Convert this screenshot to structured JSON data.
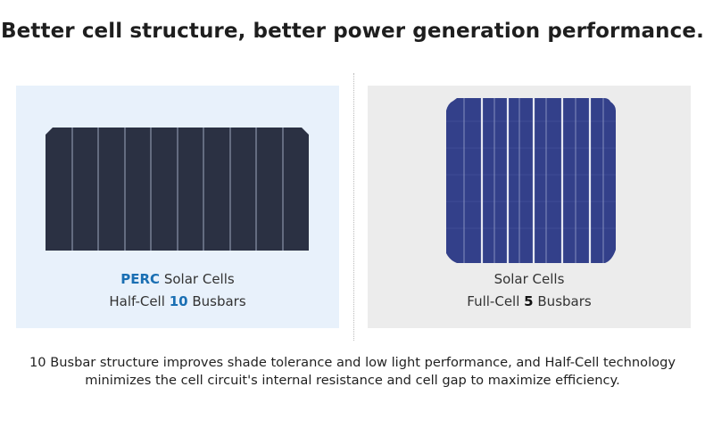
{
  "header": {
    "title": "Better cell structure, better power generation performance."
  },
  "panels": [
    {
      "name": "PERC",
      "label": "Solar Cells",
      "layout": "Half-Cell",
      "busbars": "10",
      "busbar_unit": "Busbars"
    },
    {
      "label": "Solar Cells",
      "layout": "Full-Cell",
      "busbars": "5",
      "busbar_unit": "Busbars"
    }
  ],
  "footer": {
    "text": "10 Busbar structure improves shade tolerance and low light performance, and Half-Cell technology minimizes the cell circuit's internal resistance and cell gap to maximize efficiency."
  }
}
